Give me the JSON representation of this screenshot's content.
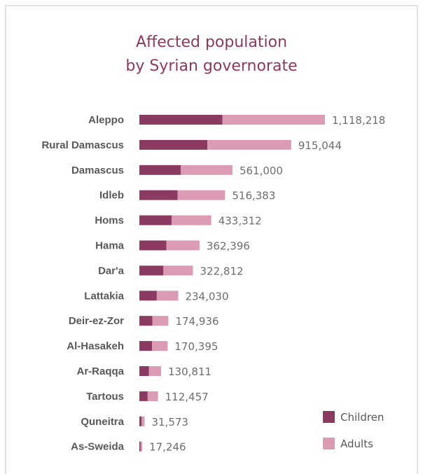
{
  "chart_data": {
    "type": "bar",
    "orientation": "horizontal",
    "stacked": true,
    "title_line1": "Affected population",
    "title_line2": "by Syrian governorate",
    "categories": [
      "Aleppo",
      "Rural Damascus",
      "Damascus",
      "Idleb",
      "Homs",
      "Hama",
      "Dar'a",
      "Lattakia",
      "Deir-ez-Zor",
      "Al-Hasakeh",
      "Ar-Raqqa",
      "Tartous",
      "Quneitra",
      "As-Sweida"
    ],
    "totals": [
      1118218,
      915044,
      561000,
      516383,
      433312,
      362396,
      322812,
      234030,
      174936,
      170395,
      130811,
      112457,
      31573,
      17246
    ],
    "total_labels": [
      "1,118,218",
      "915,044",
      "561,000",
      "516,383",
      "433,312",
      "362,396",
      "322,812",
      "234,030",
      "174,936",
      "170,395",
      "130,811",
      "112,457",
      "31,573",
      "17,246"
    ],
    "series": [
      {
        "name": "Children",
        "color": "#8b3a62",
        "values": [
          500000,
          410000,
          250000,
          230000,
          195000,
          163000,
          145000,
          105000,
          78000,
          76000,
          58000,
          50000,
          14000,
          7700
        ]
      },
      {
        "name": "Adults",
        "color": "#dc9bb5",
        "values": [
          618218,
          505044,
          311000,
          286383,
          238312,
          199396,
          177812,
          129030,
          96936,
          94395,
          72811,
          62457,
          17573,
          9546
        ]
      }
    ],
    "legend_position": "bottom-right",
    "grid": false
  }
}
